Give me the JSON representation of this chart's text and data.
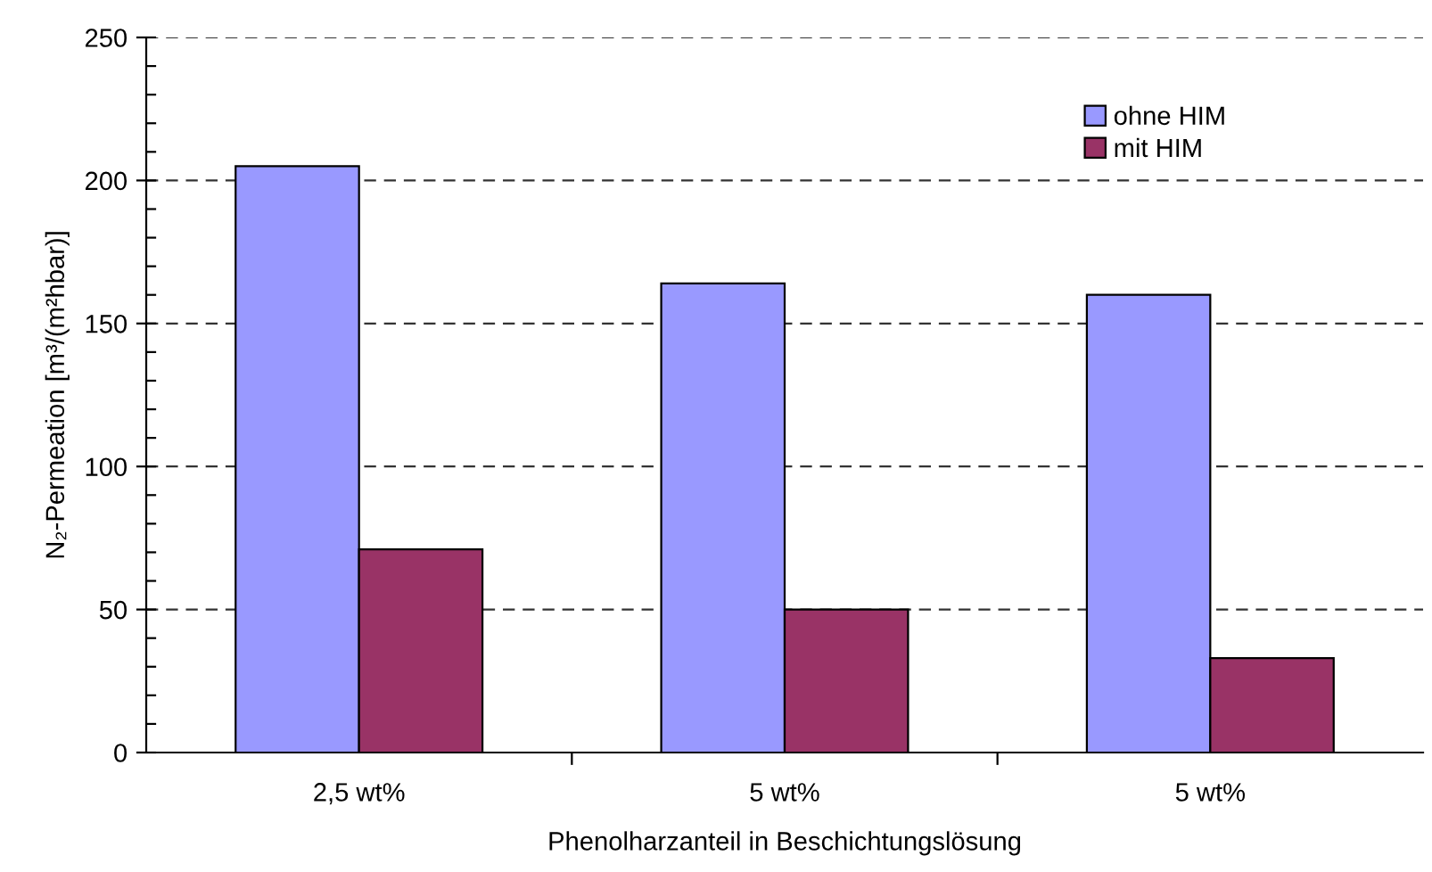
{
  "chart_data": {
    "type": "bar",
    "xlabel": "Phenolharzanteil in Beschichtungslösung",
    "ylabel": "N₂-Permeation [m³/(m²hbar)]",
    "categories": [
      "2,5 wt%",
      "5 wt%",
      "5 wt%"
    ],
    "series": [
      {
        "name": "ohne HIM",
        "color": "#9999ff",
        "values": [
          205,
          164,
          160
        ]
      },
      {
        "name": "mit HIM",
        "color": "#993366",
        "values": [
          71,
          50,
          33
        ]
      }
    ],
    "ylim": [
      0,
      250
    ],
    "yticks": [
      0,
      {
        "value": 10,
        "label": null
      },
      {
        "value": 20,
        "label": null
      },
      {
        "value": 30,
        "label": null
      },
      {
        "value": 40,
        "label": null
      },
      50,
      {
        "value": 60,
        "label": null
      },
      {
        "value": 70,
        "label": null
      },
      {
        "value": 80,
        "label": null
      },
      {
        "value": 90,
        "label": null
      },
      100,
      {
        "value": 110,
        "label": null
      },
      {
        "value": 120,
        "label": null
      },
      {
        "value": 130,
        "label": null
      },
      {
        "value": 140,
        "label": null
      },
      150,
      {
        "value": 160,
        "label": null
      },
      {
        "value": 170,
        "label": null
      },
      {
        "value": 180,
        "label": null
      },
      {
        "value": 190,
        "label": null
      },
      200,
      {
        "value": 210,
        "label": null
      },
      {
        "value": 220,
        "label": null
      },
      {
        "value": 230,
        "label": null
      },
      {
        "value": 240,
        "label": null
      },
      250
    ],
    "grid": "y",
    "legend": "top right"
  }
}
